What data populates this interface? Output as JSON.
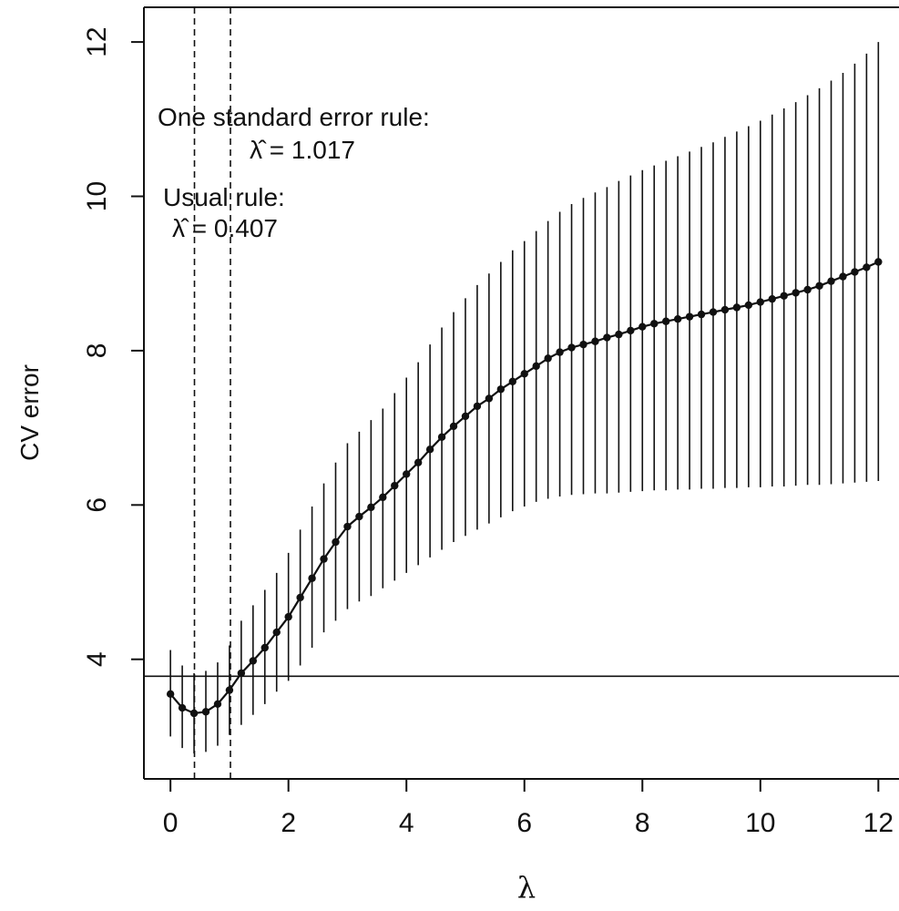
{
  "chart_data": {
    "type": "line",
    "xlabel": "λ",
    "ylabel": "CV error",
    "xlim": [
      -0.45,
      12.35
    ],
    "ylim": [
      2.45,
      12.45
    ],
    "x_ticks": [
      "0",
      "2",
      "4",
      "6",
      "8",
      "10",
      "12"
    ],
    "y_ticks": [
      "4",
      "6",
      "8",
      "10",
      "12"
    ],
    "grid": false,
    "legend": "none",
    "reference_hline": 3.78,
    "vlines": [
      {
        "x": 0.407,
        "style": "dashed"
      },
      {
        "x": 1.017,
        "style": "dashed"
      }
    ],
    "annotations": [
      {
        "id": "usual",
        "line1": "Usual rule:",
        "line2": "λ̂ = 0.407"
      },
      {
        "id": "one_se",
        "line1": "One standard error rule:",
        "line2": "λ̂ = 1.017"
      }
    ],
    "series": [
      {
        "x": [
          0.0,
          0.2,
          0.4,
          0.6,
          0.8,
          1.0,
          1.2,
          1.4,
          1.6,
          1.8,
          2.0,
          2.2,
          2.4,
          2.6,
          2.8,
          3.0,
          3.2,
          3.4,
          3.6,
          3.8,
          4.0,
          4.2,
          4.4,
          4.6,
          4.8,
          5.0,
          5.2,
          5.4,
          5.6,
          5.8,
          6.0,
          6.2,
          6.4,
          6.6,
          6.8,
          7.0,
          7.2,
          7.4,
          7.6,
          7.8,
          8.0,
          8.2,
          8.4,
          8.6,
          8.8,
          9.0,
          9.2,
          9.4,
          9.6,
          9.8,
          10.0,
          10.2,
          10.4,
          10.6,
          10.8,
          11.0,
          11.2,
          11.4,
          11.6,
          11.8,
          12.0
        ],
        "y": [
          3.55,
          3.37,
          3.3,
          3.32,
          3.42,
          3.6,
          3.82,
          3.98,
          4.15,
          4.35,
          4.55,
          4.8,
          5.05,
          5.3,
          5.52,
          5.72,
          5.85,
          5.97,
          6.1,
          6.25,
          6.4,
          6.55,
          6.72,
          6.88,
          7.02,
          7.15,
          7.28,
          7.38,
          7.5,
          7.6,
          7.7,
          7.8,
          7.9,
          7.98,
          8.04,
          8.08,
          8.12,
          8.17,
          8.21,
          8.26,
          8.31,
          8.35,
          8.38,
          8.41,
          8.44,
          8.47,
          8.5,
          8.53,
          8.56,
          8.59,
          8.63,
          8.67,
          8.71,
          8.75,
          8.79,
          8.84,
          8.9,
          8.96,
          9.02,
          9.08,
          9.15
        ],
        "err_low": [
          3.0,
          2.85,
          2.78,
          2.8,
          2.88,
          3.02,
          3.15,
          3.28,
          3.42,
          3.58,
          3.72,
          3.92,
          4.15,
          4.35,
          4.5,
          4.65,
          4.75,
          4.82,
          4.92,
          5.02,
          5.12,
          5.22,
          5.32,
          5.42,
          5.52,
          5.6,
          5.68,
          5.76,
          5.84,
          5.92,
          5.98,
          6.04,
          6.08,
          6.11,
          6.13,
          6.14,
          6.15,
          6.15,
          6.16,
          6.17,
          6.18,
          6.19,
          6.19,
          6.2,
          6.2,
          6.21,
          6.21,
          6.22,
          6.22,
          6.23,
          6.23,
          6.24,
          6.24,
          6.25,
          6.26,
          6.26,
          6.27,
          6.28,
          6.29,
          6.3,
          6.31
        ],
        "err_high": [
          4.12,
          3.92,
          3.82,
          3.85,
          3.96,
          4.18,
          4.5,
          4.7,
          4.9,
          5.12,
          5.38,
          5.68,
          5.98,
          6.28,
          6.55,
          6.8,
          6.95,
          7.1,
          7.25,
          7.45,
          7.65,
          7.85,
          8.08,
          8.3,
          8.5,
          8.68,
          8.85,
          9.0,
          9.15,
          9.3,
          9.42,
          9.55,
          9.68,
          9.8,
          9.9,
          9.98,
          10.05,
          10.12,
          10.2,
          10.27,
          10.34,
          10.4,
          10.46,
          10.52,
          10.58,
          10.64,
          10.7,
          10.77,
          10.84,
          10.91,
          10.98,
          11.06,
          11.14,
          11.22,
          11.31,
          11.4,
          11.5,
          11.6,
          11.72,
          11.85,
          12.0
        ]
      }
    ]
  }
}
